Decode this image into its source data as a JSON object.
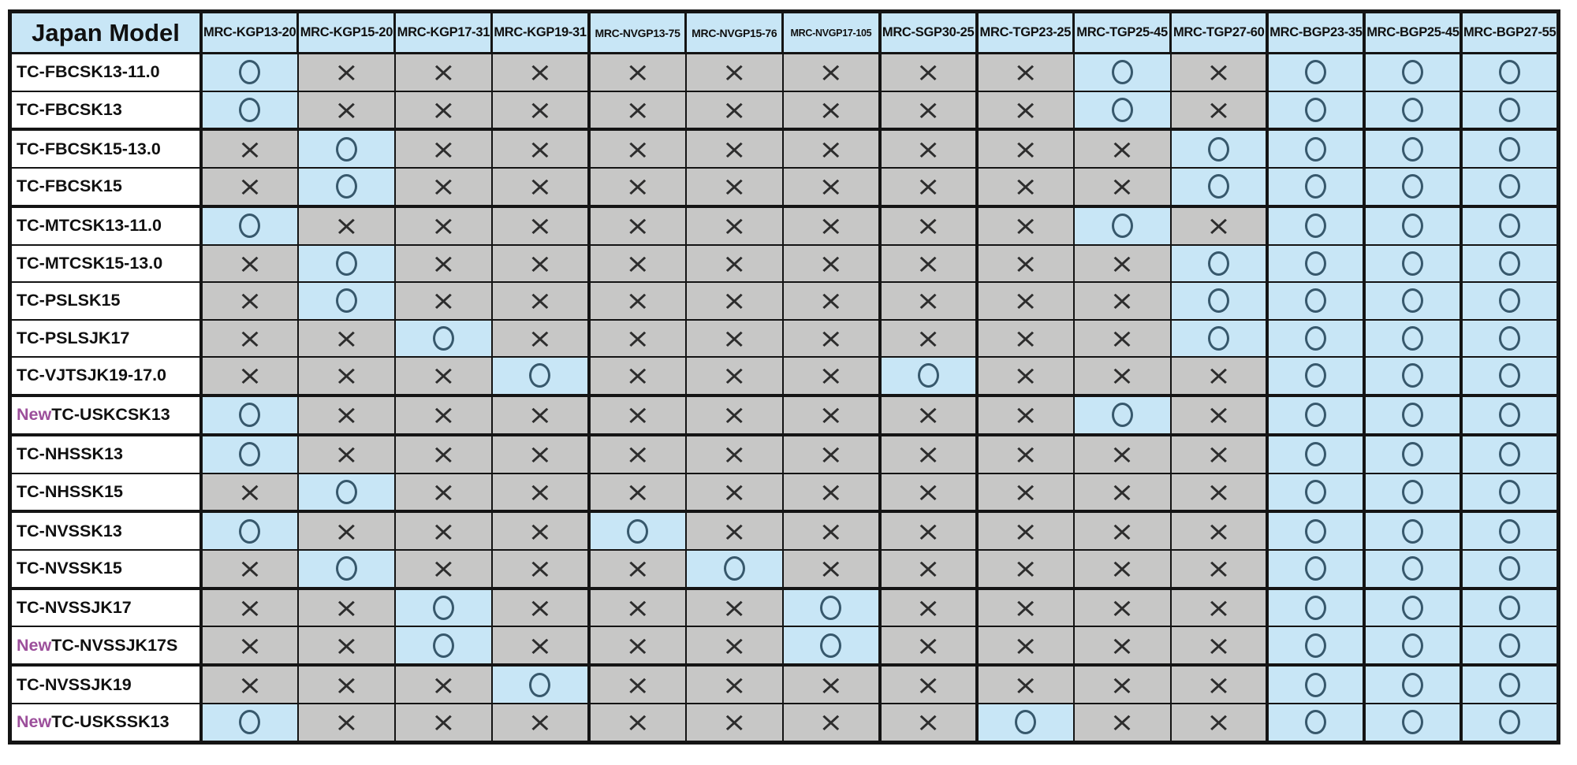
{
  "table": {
    "corner_label": "Japan Model",
    "new_badge": "New",
    "columns": [
      "MRC-KGP13-20",
      "MRC-KGP15-20",
      "MRC-KGP17-31",
      "MRC-KGP19-31",
      "MRC-NVGP13-75",
      "MRC-NVGP15-76",
      "MRC-NVGP17-105",
      "MRC-SGP30-25",
      "MRC-TGP23-25",
      "MRC-TGP25-45",
      "MRC-TGP27-60",
      "MRC-BGP23-35",
      "MRC-BGP25-45",
      "MRC-BGP27-55"
    ],
    "symbols": {
      "compatible": "○",
      "not_compatible": "×"
    },
    "rows": [
      {
        "model": "TC-FBCSK13-11.0",
        "is_new": false,
        "cells": [
          "O",
          "X",
          "X",
          "X",
          "X",
          "X",
          "X",
          "X",
          "X",
          "O",
          "X",
          "O",
          "O",
          "O"
        ]
      },
      {
        "model": "TC-FBCSK13",
        "is_new": false,
        "cells": [
          "O",
          "X",
          "X",
          "X",
          "X",
          "X",
          "X",
          "X",
          "X",
          "O",
          "X",
          "O",
          "O",
          "O"
        ]
      },
      {
        "model": "TC-FBCSK15-13.0",
        "is_new": false,
        "cells": [
          "X",
          "O",
          "X",
          "X",
          "X",
          "X",
          "X",
          "X",
          "X",
          "X",
          "O",
          "O",
          "O",
          "O"
        ]
      },
      {
        "model": "TC-FBCSK15",
        "is_new": false,
        "cells": [
          "X",
          "O",
          "X",
          "X",
          "X",
          "X",
          "X",
          "X",
          "X",
          "X",
          "O",
          "O",
          "O",
          "O"
        ]
      },
      {
        "model": "TC-MTCSK13-11.0",
        "is_new": false,
        "cells": [
          "O",
          "X",
          "X",
          "X",
          "X",
          "X",
          "X",
          "X",
          "X",
          "O",
          "X",
          "O",
          "O",
          "O"
        ]
      },
      {
        "model": "TC-MTCSK15-13.0",
        "is_new": false,
        "cells": [
          "X",
          "O",
          "X",
          "X",
          "X",
          "X",
          "X",
          "X",
          "X",
          "X",
          "O",
          "O",
          "O",
          "O"
        ]
      },
      {
        "model": "TC-PSLSK15",
        "is_new": false,
        "cells": [
          "X",
          "O",
          "X",
          "X",
          "X",
          "X",
          "X",
          "X",
          "X",
          "X",
          "O",
          "O",
          "O",
          "O"
        ]
      },
      {
        "model": "TC-PSLSJK17",
        "is_new": false,
        "cells": [
          "X",
          "X",
          "O",
          "X",
          "X",
          "X",
          "X",
          "X",
          "X",
          "X",
          "O",
          "O",
          "O",
          "O"
        ]
      },
      {
        "model": "TC-VJTSJK19-17.0",
        "is_new": false,
        "cells": [
          "X",
          "X",
          "X",
          "O",
          "X",
          "X",
          "X",
          "O",
          "X",
          "X",
          "X",
          "O",
          "O",
          "O"
        ]
      },
      {
        "model": "TC-USKCSK13",
        "is_new": true,
        "cells": [
          "O",
          "X",
          "X",
          "X",
          "X",
          "X",
          "X",
          "X",
          "X",
          "O",
          "X",
          "O",
          "O",
          "O"
        ]
      },
      {
        "model": "TC-NHSSK13",
        "is_new": false,
        "cells": [
          "O",
          "X",
          "X",
          "X",
          "X",
          "X",
          "X",
          "X",
          "X",
          "X",
          "X",
          "O",
          "O",
          "O"
        ]
      },
      {
        "model": "TC-NHSSK15",
        "is_new": false,
        "cells": [
          "X",
          "O",
          "X",
          "X",
          "X",
          "X",
          "X",
          "X",
          "X",
          "X",
          "X",
          "O",
          "O",
          "O"
        ]
      },
      {
        "model": "TC-NVSSK13",
        "is_new": false,
        "cells": [
          "O",
          "X",
          "X",
          "X",
          "O",
          "X",
          "X",
          "X",
          "X",
          "X",
          "X",
          "O",
          "O",
          "O"
        ]
      },
      {
        "model": "TC-NVSSK15",
        "is_new": false,
        "cells": [
          "X",
          "O",
          "X",
          "X",
          "X",
          "O",
          "X",
          "X",
          "X",
          "X",
          "X",
          "O",
          "O",
          "O"
        ]
      },
      {
        "model": "TC-NVSSJK17",
        "is_new": false,
        "cells": [
          "X",
          "X",
          "O",
          "X",
          "X",
          "X",
          "O",
          "X",
          "X",
          "X",
          "X",
          "O",
          "O",
          "O"
        ]
      },
      {
        "model": "TC-NVSSJK17S",
        "is_new": true,
        "cells": [
          "X",
          "X",
          "O",
          "X",
          "X",
          "X",
          "O",
          "X",
          "X",
          "X",
          "X",
          "O",
          "O",
          "O"
        ]
      },
      {
        "model": "TC-NVSSJK19",
        "is_new": false,
        "cells": [
          "X",
          "X",
          "X",
          "O",
          "X",
          "X",
          "X",
          "X",
          "X",
          "X",
          "X",
          "O",
          "O",
          "O"
        ]
      },
      {
        "model": "TC-USKSSK13",
        "is_new": true,
        "cells": [
          "O",
          "X",
          "X",
          "X",
          "X",
          "X",
          "X",
          "X",
          "O",
          "X",
          "X",
          "O",
          "O",
          "O"
        ]
      }
    ]
  },
  "colors": {
    "compatible_bg": "#c8e6f6",
    "not_compatible_bg": "#c7c7c6",
    "header_bg": "#c8e6f6",
    "new_badge_text": "#9c4f9b",
    "border": "#141414",
    "circle_stroke": "#37586c"
  }
}
